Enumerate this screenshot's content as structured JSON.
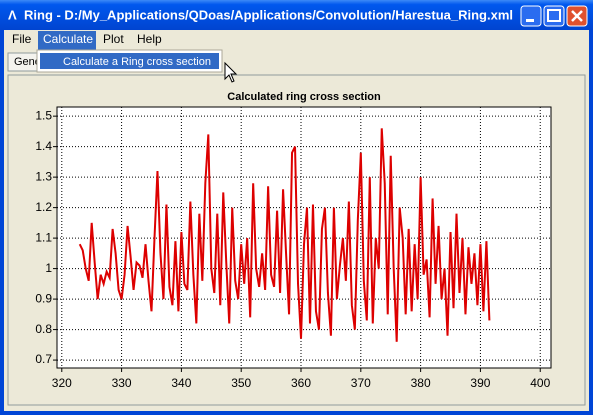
{
  "window_title": "Ring - D:/My_Applications/QDoas/Applications/Convolution/Harestua_Ring.xml",
  "menu": [
    "File",
    "Calculate",
    "Plot",
    "Help"
  ],
  "menu_item": "Calculate a Ring cross section",
  "tab": "Gene",
  "chart_data": {
    "type": "line",
    "title": "Calculated ring cross section",
    "x": [
      323,
      323.5,
      324,
      324.5,
      325,
      325.5,
      326,
      326.5,
      327,
      327.5,
      328,
      328.5,
      329,
      329.5,
      330,
      330.5,
      331,
      331.5,
      332,
      332.5,
      333,
      333.5,
      334,
      334.5,
      335,
      335.5,
      336,
      336.5,
      337,
      337.5,
      338,
      338.5,
      339,
      339.5,
      340,
      340.5,
      341,
      341.5,
      342,
      342.5,
      343,
      343.5,
      344,
      344.5,
      345,
      345.5,
      346,
      346.5,
      347,
      347.5,
      348,
      348.5,
      349,
      349.5,
      350,
      350.5,
      351,
      351.5,
      352,
      352.5,
      353,
      353.5,
      354,
      354.5,
      355,
      355.5,
      356,
      356.5,
      357,
      357.5,
      358,
      358.5,
      359,
      359.5,
      360,
      360.5,
      361,
      361.5,
      362,
      362.5,
      363,
      363.5,
      364,
      364.5,
      365,
      365.5,
      366,
      366.5,
      367,
      367.5,
      368,
      368.5,
      369,
      369.5,
      370,
      370.5,
      371,
      371.5,
      372,
      372.5,
      373,
      373.5,
      374,
      374.5,
      375,
      375.5,
      376,
      376.5,
      377,
      377.5,
      378,
      378.5,
      379,
      379.5,
      380,
      380.5,
      381,
      381.5,
      382,
      382.5,
      383,
      383.5,
      384,
      384.5,
      385,
      385.5,
      386,
      386.5,
      387,
      387.5,
      388,
      388.5,
      389,
      389.5,
      390,
      390.5,
      391,
      391.5
    ],
    "series": [
      {
        "name": "Ring",
        "color": "#dd0000",
        "values": [
          1.08,
          1.06,
          1.0,
          0.96,
          1.15,
          1.02,
          0.9,
          0.98,
          0.95,
          0.99,
          0.97,
          1.13,
          1.05,
          0.93,
          0.9,
          0.98,
          1.14,
          1.04,
          0.93,
          1.02,
          1.01,
          0.97,
          1.08,
          0.96,
          0.86,
          1.1,
          1.32,
          1.05,
          0.9,
          1.21,
          0.94,
          0.88,
          1.09,
          0.86,
          1.12,
          0.95,
          0.93,
          1.22,
          0.98,
          0.82,
          1.18,
          0.96,
          1.28,
          1.44,
          1.0,
          0.92,
          1.18,
          0.88,
          1.25,
          1.02,
          0.82,
          1.2,
          0.96,
          0.9,
          1.08,
          0.95,
          1.1,
          0.84,
          1.28,
          1.0,
          0.94,
          1.05,
          0.93,
          1.27,
          0.98,
          0.94,
          1.19,
          0.92,
          1.26,
          1.05,
          0.85,
          1.38,
          1.4,
          0.95,
          0.77,
          1.08,
          1.2,
          0.82,
          1.21,
          0.86,
          0.8,
          1.13,
          1.2,
          0.92,
          0.78,
          1.2,
          0.9,
          1.01,
          1.1,
          0.96,
          1.22,
          0.88,
          0.8,
          1.16,
          1.38,
          0.96,
          0.83,
          1.3,
          0.82,
          1.1,
          1.0,
          1.46,
          1.28,
          0.85,
          1.37,
          1.0,
          0.76,
          1.2,
          1.1,
          0.85,
          1.13,
          0.86,
          1.08,
          0.9,
          1.3,
          0.98,
          1.03,
          0.84,
          1.23,
          0.95,
          1.14,
          0.9,
          1.0,
          0.78,
          1.12,
          0.87,
          1.18,
          0.92,
          1.1,
          0.85,
          1.07,
          0.95,
          1.05,
          0.88,
          1.08,
          0.86,
          1.09,
          0.83
        ]
      }
    ],
    "xlim": [
      319.2,
      401.8
    ],
    "ylim": [
      0.674,
      1.53
    ],
    "xticks": [
      320,
      330,
      340,
      350,
      360,
      370,
      380,
      390,
      400
    ],
    "yticks": [
      0.7,
      0.8,
      0.9,
      1,
      1.1,
      1.2,
      1.3,
      1.4,
      1.5
    ],
    "grid": true
  }
}
